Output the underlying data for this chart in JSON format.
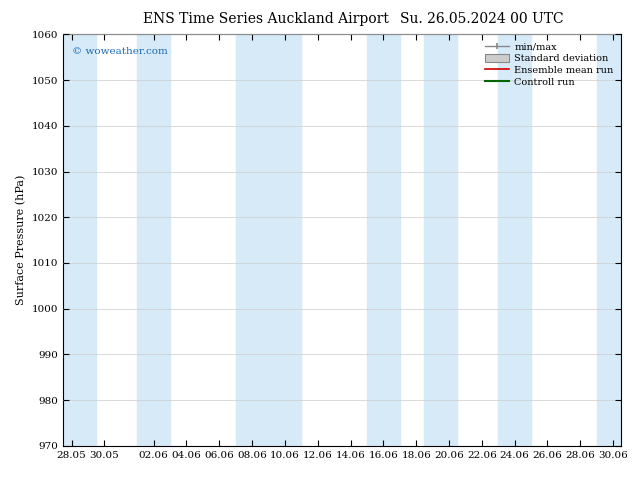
{
  "title": "ENS Time Series Auckland Airport",
  "title2": "Su. 26.05.2024 00 UTC",
  "ylabel": "Surface Pressure (hPa)",
  "ylim": [
    970,
    1060
  ],
  "yticks": [
    970,
    980,
    990,
    1000,
    1010,
    1020,
    1030,
    1040,
    1050,
    1060
  ],
  "watermark": "© woweather.com",
  "bg_color": "#ffffff",
  "plot_bg": "#ffffff",
  "band_color": "#d6eaf8",
  "xtick_labels": [
    "28.05",
    "30.05",
    "02.06",
    "04.06",
    "06.06",
    "08.06",
    "10.06",
    "12.06",
    "14.06",
    "16.06",
    "18.06",
    "20.06",
    "22.06",
    "24.06",
    "26.06",
    "28.06",
    "30.06"
  ],
  "legend_items": [
    "min/max",
    "Standard deviation",
    "Ensemble mean run",
    "Controll run"
  ],
  "title_fontsize": 10,
  "axis_fontsize": 8,
  "tick_fontsize": 7.5
}
